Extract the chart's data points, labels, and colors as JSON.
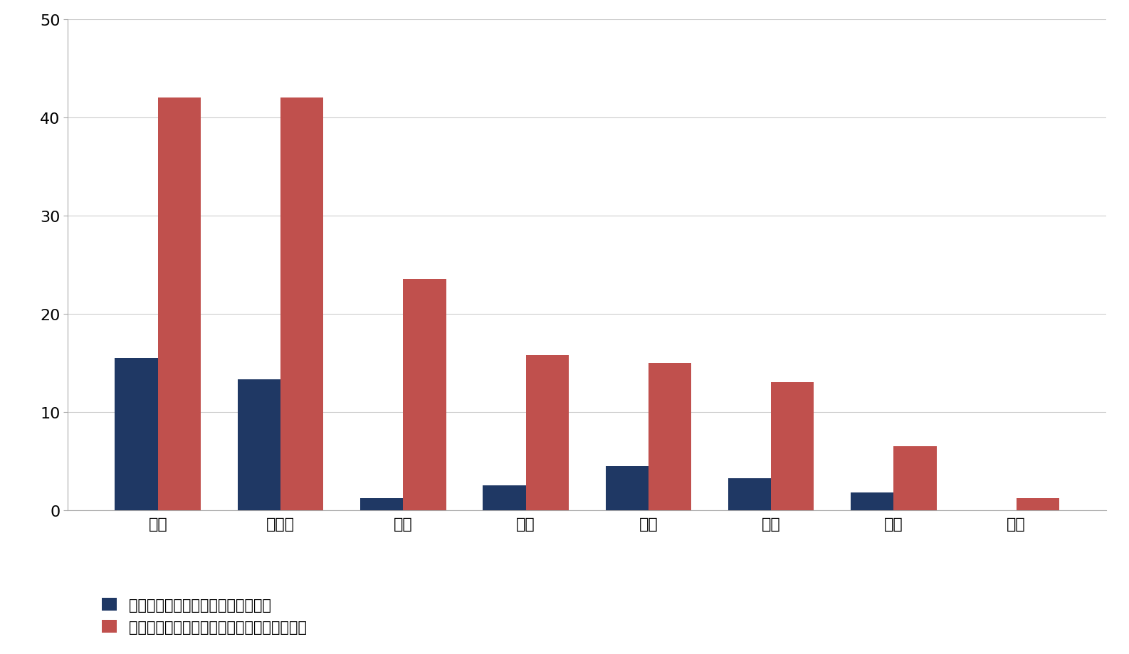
{
  "categories": [
    "北美",
    "大洋洲",
    "亚太",
    "全球",
    "西欧",
    "拉美",
    "东欧",
    "中东"
  ],
  "series1_label": "人均体重管理类产品消费额（美元）",
  "series2_label": "肥胖人群人均体重管理类产品消费额（美元）",
  "series1_values": [
    15.5,
    13.3,
    1.2,
    2.5,
    4.5,
    3.2,
    1.8,
    0.0
  ],
  "series2_values": [
    42.0,
    42.0,
    23.5,
    15.8,
    15.0,
    13.0,
    6.5,
    1.2
  ],
  "series1_color": "#1f3864",
  "series2_color": "#c0504d",
  "ylim": [
    0,
    50
  ],
  "yticks": [
    0,
    10,
    20,
    30,
    40,
    50
  ],
  "background_color": "#ffffff",
  "bar_width": 0.35,
  "grid_color": "#cccccc",
  "tick_label_fontsize": 16,
  "legend_fontsize": 15
}
